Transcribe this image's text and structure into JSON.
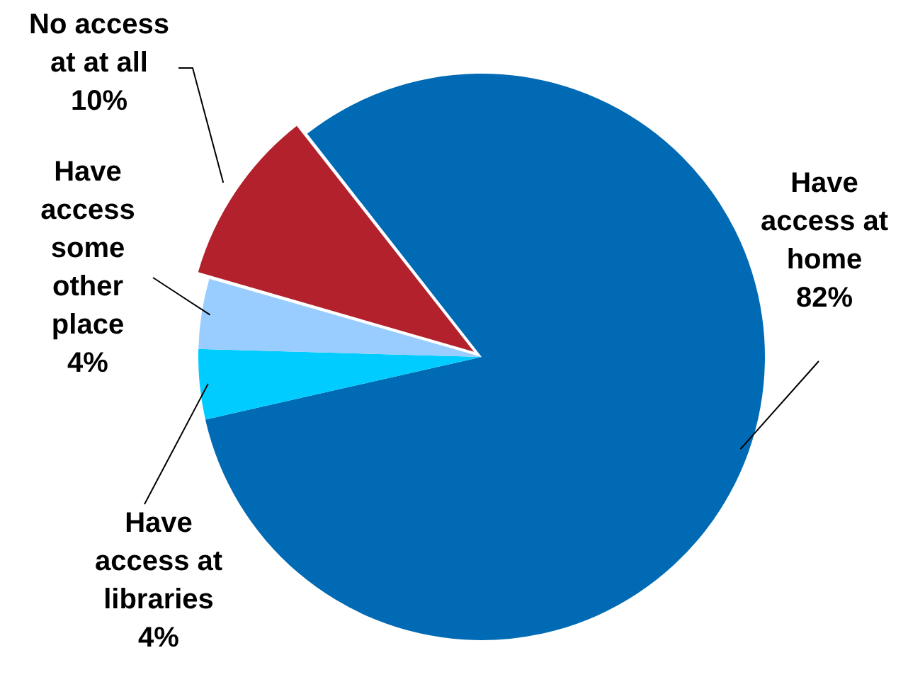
{
  "chart_data": {
    "type": "pie",
    "categories": [
      "Have access at home",
      "Have access at libraries",
      "Have access some other place",
      "No access at at all"
    ],
    "values": [
      82,
      4,
      4,
      10
    ],
    "colors": [
      "#006ab4",
      "#00ccff",
      "#99ccff",
      "#b3212d"
    ],
    "value_labels": [
      "82%",
      "4%",
      "4%",
      "10%"
    ],
    "legend": false
  }
}
